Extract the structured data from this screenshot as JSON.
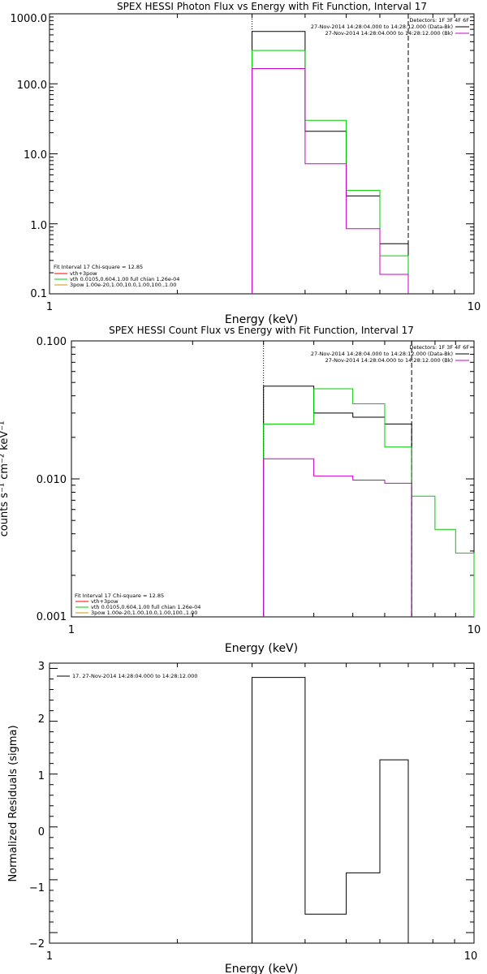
{
  "panels": [
    {
      "title": "SPEX HESSI Photon Flux vs Energy with Fit Function, Interval 17",
      "xlabel": "Energy (keV)",
      "ylabel": "",
      "x_ticks": [
        "1",
        "10"
      ],
      "y_ticks": [
        "1000.0",
        "100.0",
        "10.0",
        "1.0",
        "0.1"
      ],
      "legend_tr": [
        {
          "text": "Detectors: 1F 3F 4F 6F",
          "color": ""
        },
        {
          "text": "27-Nov-2014 14:28:04.000 to 14:28:12.000 (Data-Bk)",
          "color": "#000000"
        },
        {
          "text": "27-Nov-2014 14:28:04.000 to 14:28:12.000 (Bk)",
          "color": "#cc00cc"
        }
      ],
      "legend_bl": [
        {
          "text": "Fit Interval 17    Chi-square = 12.85",
          "color": ""
        },
        {
          "text": "vth+3pow",
          "color": "#ff0000"
        },
        {
          "text": "vth 0.0105,0.604,1.00  full chian 1.26e-04",
          "color": "#00cc00"
        },
        {
          "text": "3pow 1.00e-20,1.00,10.0,1.00,100.,1.00",
          "color": "#cc9900"
        }
      ]
    },
    {
      "title": "SPEX HESSI Count Flux vs Energy with Fit Function, Interval 17",
      "xlabel": "Energy (keV)",
      "ylabel": "counts s⁻¹ cm⁻² keV⁻¹",
      "x_ticks": [
        "1",
        "10"
      ],
      "y_ticks": [
        "0.100",
        "0.010",
        "0.001"
      ],
      "legend_tr": [
        {
          "text": "Detectors: 1F 3F 4F 6F",
          "color": ""
        },
        {
          "text": "27-Nov-2014 14:28:04.000 to 14:28:12.000 (Data-Bk)",
          "color": "#000000"
        },
        {
          "text": "27-Nov-2014 14:28:04.000 to 14:28:12.000 (Bk)",
          "color": "#cc00cc"
        }
      ],
      "legend_bl": [
        {
          "text": "Fit Interval 17    Chi-square = 12.85",
          "color": ""
        },
        {
          "text": "vth+3pow",
          "color": "#ff0000"
        },
        {
          "text": "vth 0.0105,0.604,1.00  full chian 1.26e-04",
          "color": "#00cc00"
        },
        {
          "text": "3pow 1.00e-20,1.00,10.0,1.00,100.,1.00",
          "color": "#cc9900"
        }
      ]
    },
    {
      "title": "",
      "xlabel": "Energy (keV)",
      "ylabel": "Normalized Residuals (sigma)",
      "x_ticks": [
        "1",
        "10"
      ],
      "y_ticks": [
        "3",
        "2",
        "1",
        "0",
        "−1",
        "−2"
      ],
      "legend_tl": [
        {
          "text": "17. 27-Nov-2014 14:28:04.000 to 14:28:12.000",
          "color": "#000000"
        }
      ]
    }
  ],
  "chart_data": [
    {
      "type": "line",
      "title": "SPEX HESSI Photon Flux vs Energy with Fit Function, Interval 17",
      "xlabel": "Energy (keV)",
      "xscale": "log",
      "yscale": "log",
      "xlim": [
        1,
        10
      ],
      "ylim": [
        0.1,
        1000
      ],
      "bin_edges": [
        3,
        4,
        5,
        6,
        7
      ],
      "fit_range": [
        3,
        7
      ],
      "series": [
        {
          "name": "27-Nov-2014 14:28:04.000 to 14:28:12.000 (Data-Bk)",
          "color": "#000000",
          "values": [
            560,
            21,
            2.5,
            0.52
          ]
        },
        {
          "name": "vth",
          "color": "#00cc00",
          "values": [
            300,
            30,
            3.0,
            0.35
          ]
        },
        {
          "name": "27-Nov-2014 14:28:04.000 to 14:28:12.000 (Bk)",
          "color": "#cc00cc",
          "values": [
            165,
            7.2,
            0.85,
            0.19
          ]
        }
      ],
      "grid": false,
      "legend": "top-right"
    },
    {
      "type": "line",
      "title": "SPEX HESSI Count Flux vs Energy with Fit Function, Interval 17",
      "xlabel": "Energy (keV)",
      "xscale": "log",
      "yscale": "log",
      "xlim": [
        1,
        10
      ],
      "ylim": [
        0.001,
        0.1
      ],
      "bin_edges": [
        3,
        4,
        5,
        6,
        7,
        8,
        9,
        10
      ],
      "fit_range": [
        3,
        7
      ],
      "series": [
        {
          "name": "27-Nov-2014 14:28:04.000 to 14:28:12.000 (Data-Bk)",
          "color": "#000000",
          "values": [
            0.047,
            0.03,
            0.028,
            0.025
          ]
        },
        {
          "name": "vth",
          "color": "#00cc00",
          "values": [
            0.025,
            0.045,
            0.035,
            0.017,
            0.0075,
            0.0043,
            0.0029
          ]
        },
        {
          "name": "27-Nov-2014 14:28:04.000 to 14:28:12.000 (Bk)",
          "color": "#cc00cc",
          "values": [
            0.014,
            0.0105,
            0.0098,
            0.0093
          ]
        }
      ],
      "grid": false,
      "legend": "top-right"
    },
    {
      "type": "line",
      "title": "",
      "xlabel": "Energy (keV)",
      "ylabel": "Normalized Residuals (sigma)",
      "xscale": "log",
      "xlim": [
        1,
        10
      ],
      "ylim": [
        -2.2,
        3.1
      ],
      "bin_edges": [
        3,
        4,
        5,
        6,
        7
      ],
      "series": [
        {
          "name": "17. 27-Nov-2014 14:28:04.000 to 14:28:12.000",
          "color": "#000000",
          "values": [
            2.83,
            -1.65,
            -0.87,
            1.27
          ]
        }
      ],
      "grid": false,
      "legend": "top-left"
    }
  ]
}
